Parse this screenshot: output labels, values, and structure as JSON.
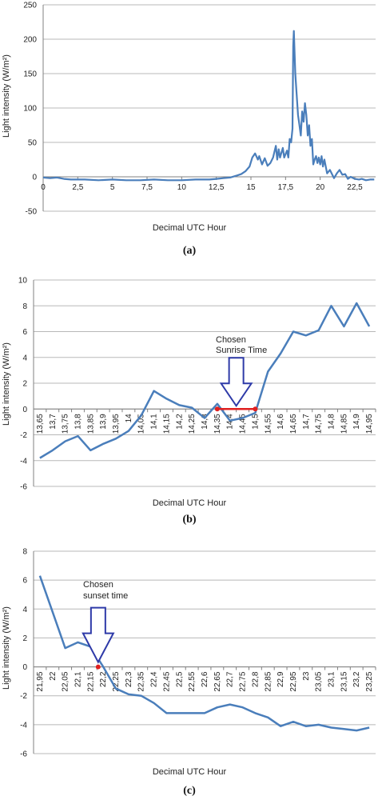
{
  "colors": {
    "series": "#4a7ebb",
    "grid": "#b8b8b8",
    "axis": "#808080",
    "marker": "#e02020",
    "arrow": "#2e3aa8"
  },
  "chart_data": [
    {
      "type": "line",
      "caption": "(a)",
      "xlabel": "Decimal UTC Hour",
      "ylabel": "Light intensity (W/m²)",
      "xlim": [
        0,
        24
      ],
      "ylim": [
        -50,
        250
      ],
      "xticks": [
        0,
        2.5,
        5,
        7.5,
        10,
        12.5,
        15,
        17.5,
        20,
        22.5
      ],
      "xtick_labels": [
        "0",
        "2,5",
        "5",
        "7,5",
        "10",
        "12,5",
        "15",
        "17,5",
        "20",
        "22,5"
      ],
      "yticks": [
        -50,
        0,
        50,
        100,
        150,
        200,
        250
      ],
      "ytick_labels": [
        "-50",
        "0",
        "50",
        "100",
        "150",
        "200",
        "250"
      ],
      "grid": "horizontal",
      "x": [
        0,
        0.5,
        1,
        1.5,
        2,
        3,
        4,
        5,
        6,
        7,
        8,
        9,
        10,
        11,
        12,
        12.5,
        13,
        13.5,
        14,
        14.3,
        14.6,
        14.9,
        15.1,
        15.3,
        15.5,
        15.6,
        15.8,
        16,
        16.2,
        16.4,
        16.6,
        16.8,
        16.9,
        17,
        17.1,
        17.3,
        17.4,
        17.6,
        17.7,
        17.8,
        17.9,
        18,
        18.05,
        18.1,
        18.2,
        18.3,
        18.4,
        18.5,
        18.6,
        18.7,
        18.8,
        18.9,
        19,
        19.1,
        19.2,
        19.3,
        19.4,
        19.5,
        19.6,
        19.7,
        19.8,
        19.9,
        20,
        20.1,
        20.2,
        20.3,
        20.5,
        20.7,
        21,
        21.2,
        21.4,
        21.6,
        21.8,
        22,
        22.2,
        22.5,
        22.8,
        23,
        23.3,
        23.6,
        23.9
      ],
      "y": [
        -1,
        -2,
        -1,
        -3,
        -4,
        -4,
        -5,
        -4,
        -5,
        -5,
        -4,
        -5,
        -5,
        -4,
        -4,
        -3,
        -2,
        -1,
        2,
        4,
        8,
        15,
        28,
        34,
        25,
        30,
        18,
        27,
        16,
        20,
        28,
        45,
        25,
        40,
        28,
        42,
        28,
        38,
        28,
        55,
        50,
        70,
        190,
        212,
        150,
        120,
        90,
        75,
        60,
        95,
        80,
        107,
        90,
        60,
        75,
        45,
        55,
        18,
        25,
        30,
        20,
        28,
        18,
        30,
        15,
        25,
        5,
        10,
        -2,
        5,
        10,
        3,
        4,
        -3,
        0,
        -3,
        -4,
        -3,
        -5,
        -4,
        -4
      ]
    },
    {
      "type": "line",
      "caption": "(b)",
      "xlabel": "Decimal UTC Hour",
      "ylabel": "Light intensity (W/m²)",
      "ylim": [
        -6,
        10
      ],
      "yticks": [
        -6,
        -4,
        -2,
        0,
        2,
        4,
        6,
        8,
        10
      ],
      "ytick_labels": [
        "-6",
        "-4",
        "-2",
        "0",
        "2",
        "4",
        "6",
        "8",
        "10"
      ],
      "grid": "horizontal",
      "categories": [
        "13,65",
        "13,7",
        "13,75",
        "13,8",
        "13,85",
        "13,9",
        "13,95",
        "14",
        "14,05",
        "14,1",
        "14,15",
        "14,2",
        "14,25",
        "14,3",
        "14,35",
        "14,4",
        "14,45",
        "14,5",
        "14,55",
        "14,6",
        "14,65",
        "14,7",
        "14,75",
        "14,8",
        "14,85",
        "14,9",
        "14,95"
      ],
      "values": [
        -3.8,
        -3.2,
        -2.5,
        -2.1,
        -3.2,
        -2.7,
        -2.3,
        -1.7,
        -0.5,
        1.4,
        0.8,
        0.3,
        0.1,
        -0.7,
        0.4,
        -0.9,
        -0.7,
        -0.3,
        2.9,
        4.3,
        6.0,
        5.7,
        6.1,
        8.0,
        6.4,
        8.2,
        6.4
      ],
      "marker_segment": {
        "from_category": "14,35",
        "to_category": "14,5",
        "y": 0
      },
      "annotation": {
        "lines": [
          "Chosen",
          "Sunrise Time"
        ]
      }
    },
    {
      "type": "line",
      "caption": "(c)",
      "xlabel": "Decimal UTC Hour",
      "ylabel": "Light intensity (W/m²)",
      "ylim": [
        -6,
        8
      ],
      "yticks": [
        -6,
        -4,
        -2,
        0,
        2,
        4,
        6,
        8
      ],
      "ytick_labels": [
        "-6",
        "-4",
        "-2",
        "0",
        "2",
        "4",
        "6",
        "8"
      ],
      "grid": "horizontal",
      "categories": [
        "21,95",
        "22",
        "22,05",
        "22,1",
        "22,15",
        "22,2",
        "22,25",
        "22,3",
        "22,35",
        "22,4",
        "22,45",
        "22,5",
        "22,55",
        "22,6",
        "22,65",
        "22,7",
        "22,75",
        "22,8",
        "22,85",
        "22,9",
        "22,95",
        "23",
        "23,05",
        "23,1",
        "23,15",
        "23,2",
        "23,25"
      ],
      "values": [
        6.3,
        3.8,
        1.3,
        1.7,
        1.4,
        0,
        -1.5,
        -1.9,
        -2.0,
        -2.5,
        -3.2,
        -3.2,
        -3.2,
        -3.2,
        -2.8,
        -2.6,
        -2.8,
        -3.2,
        -3.5,
        -4.1,
        -3.8,
        -4.1,
        -4.0,
        -4.2,
        -4.3,
        -4.4,
        -4.2
      ],
      "marker_point": {
        "category_index": 4.6,
        "y": 0
      },
      "annotation": {
        "lines": [
          "Chosen",
          "sunset time"
        ]
      }
    }
  ]
}
